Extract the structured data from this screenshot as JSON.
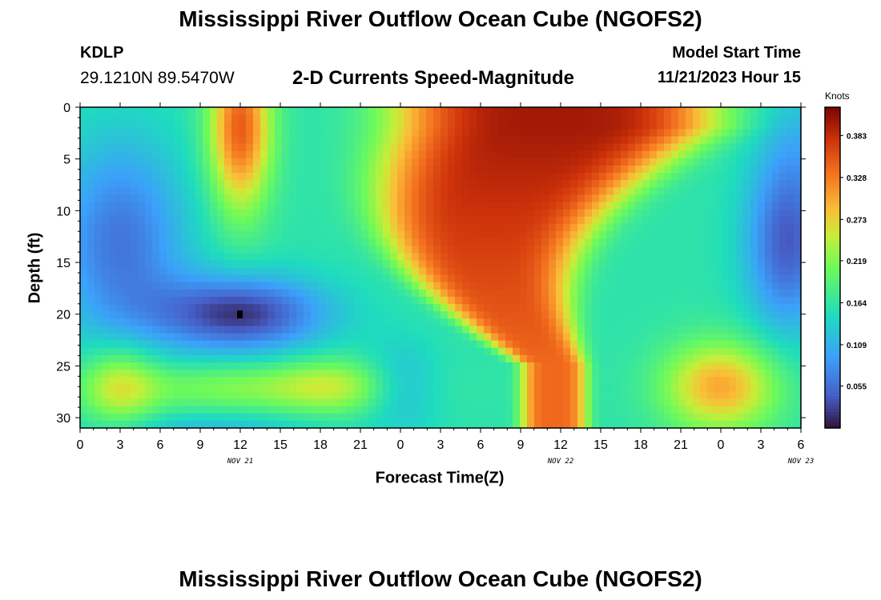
{
  "header": {
    "title": "Mississippi River Outflow Ocean Cube (NGOFS2)",
    "station": "KDLP",
    "coordinates": "29.1210N  89.5470W",
    "subtitle": "2-D Currents Speed-Magnitude",
    "model_start_label": "Model Start Time",
    "model_start_time": "11/21/2023 Hour 15"
  },
  "footer": {
    "title": "Mississippi River Outflow Ocean Cube (NGOFS2)"
  },
  "chart_data": {
    "type": "heatmap",
    "xlabel": "Forecast Time(Z)",
    "ylabel": "Depth (ft)",
    "x_tick_labels": [
      "0",
      "3",
      "6",
      "9",
      "12",
      "15",
      "18",
      "21",
      "0",
      "3",
      "6",
      "9",
      "12",
      "15",
      "18",
      "21",
      "0",
      "3",
      "6"
    ],
    "x_date_labels": [
      {
        "label": "NOV 21",
        "at_hour": 12
      },
      {
        "label": "NOV 22",
        "at_hour": 36
      },
      {
        "label": "NOV 23",
        "at_hour": 54
      }
    ],
    "x_range_hours": [
      0,
      54
    ],
    "y_ticks": [
      0,
      5,
      10,
      15,
      20,
      25,
      30
    ],
    "y_range": [
      0,
      31
    ],
    "y_inverted": true,
    "colorbar": {
      "units": "Knots",
      "ticks": [
        "0.383",
        "0.328",
        "0.273",
        "0.219",
        "0.164",
        "0.109",
        "0.055"
      ],
      "range": [
        0.0,
        0.42
      ]
    },
    "speed_field_description_points": [
      {
        "hour": 0,
        "depth": 0,
        "speed": 0.17
      },
      {
        "hour": 12,
        "depth": 2,
        "speed": 0.36
      },
      {
        "hour": 12,
        "depth": 20,
        "speed": 0.02
      },
      {
        "hour": 36,
        "depth": 2,
        "speed": 0.41
      },
      {
        "hour": 3,
        "depth": 27,
        "speed": 0.26
      },
      {
        "hour": 48,
        "depth": 27,
        "speed": 0.29
      },
      {
        "hour": 53,
        "depth": 13,
        "speed": 0.05
      }
    ],
    "colors": {
      "low": "#30123b",
      "high": "#7a0403"
    }
  }
}
